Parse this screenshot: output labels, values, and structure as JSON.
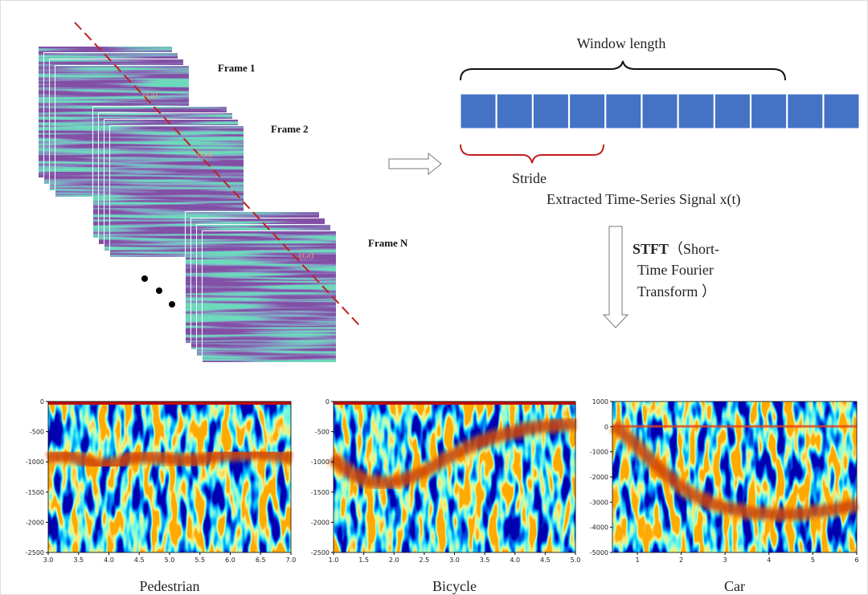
{
  "frames": [
    {
      "label": "Frame 1",
      "point": "(r,a)"
    },
    {
      "label": "Frame 2",
      "point": "(r,a)"
    },
    {
      "label": "Frame N",
      "point": "(r,a)"
    }
  ],
  "window": {
    "title": "Window length",
    "stride": "Stride",
    "signal": "Extracted Time-Series Signal x(t)"
  },
  "transform": {
    "bold": "STFT",
    "lines": [
      "（Short-",
      "Time Fourier",
      "Transform ）"
    ]
  },
  "plots": [
    {
      "label": "Pedestrian",
      "xticks": [
        "3.0",
        "3.5",
        "4.0",
        "4.5",
        "5.0",
        "5.5",
        "6.0",
        "6.5",
        "7.0"
      ],
      "yticks": [
        "0",
        "-500",
        "-1000",
        "-1500",
        "-2000",
        "-2500"
      ]
    },
    {
      "label": "Bicycle",
      "xticks": [
        "1.0",
        "1.5",
        "2.0",
        "2.5",
        "3.0",
        "3.5",
        "4.0",
        "4.5",
        "5.0"
      ],
      "yticks": [
        "0",
        "-500",
        "-1000",
        "-1500",
        "-2000",
        "-2500"
      ]
    },
    {
      "label": "Car",
      "xticks": [
        "1",
        "2",
        "3",
        "4",
        "5",
        "6"
      ],
      "yticks": [
        "1000",
        "0",
        "-1000",
        "-2000",
        "-3000",
        "-4000",
        "-5000"
      ]
    }
  ]
}
